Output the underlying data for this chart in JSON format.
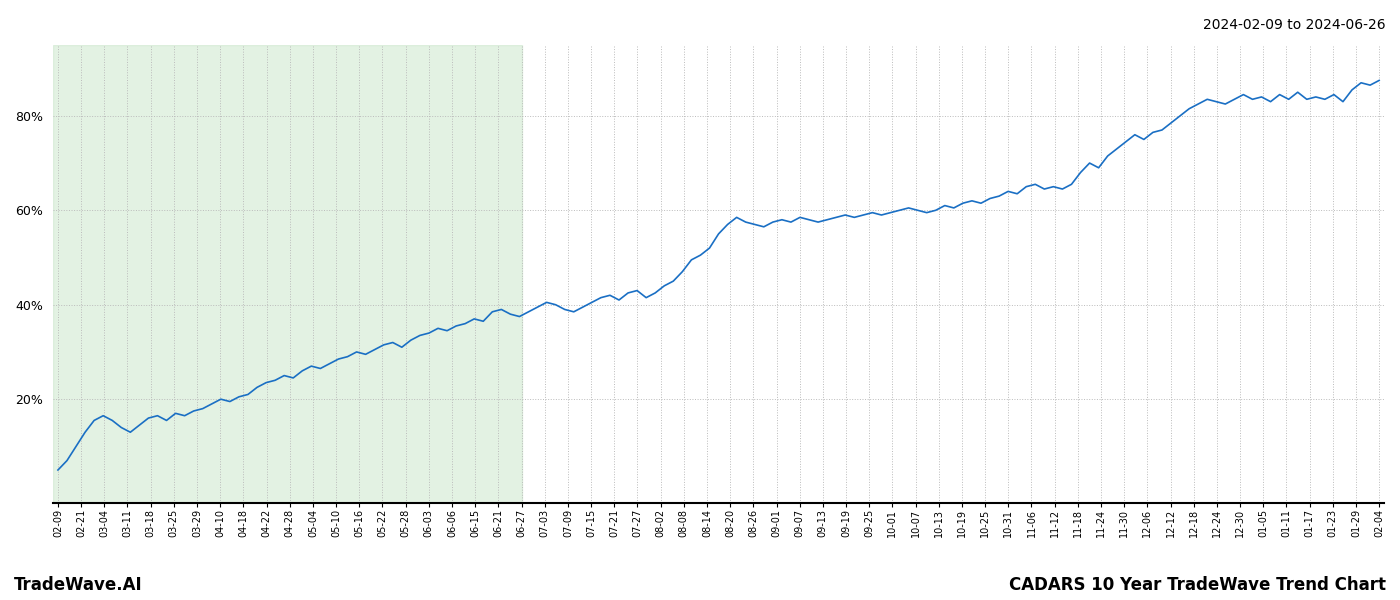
{
  "title_top_right": "2024-02-09 to 2024-06-26",
  "title_bottom_left": "TradeWave.AI",
  "title_bottom_right": "CADARS 10 Year TradeWave Trend Chart",
  "line_color": "#1a6fc4",
  "line_width": 1.2,
  "shade_color": "#c8e6c9",
  "shade_alpha": 0.5,
  "background_color": "#ffffff",
  "grid_color": "#bbbbbb",
  "grid_style": ":",
  "ylim": [
    -2,
    95
  ],
  "yticks": [
    20,
    40,
    60,
    80
  ],
  "x_tick_labels": [
    "02-09",
    "02-21",
    "03-04",
    "03-11",
    "03-18",
    "03-25",
    "03-29",
    "04-10",
    "04-18",
    "04-22",
    "04-28",
    "05-04",
    "05-10",
    "05-16",
    "05-22",
    "05-28",
    "06-03",
    "06-06",
    "06-15",
    "06-21",
    "06-27",
    "07-03",
    "07-09",
    "07-15",
    "07-21",
    "07-27",
    "08-02",
    "08-08",
    "08-14",
    "08-20",
    "08-26",
    "09-01",
    "09-07",
    "09-13",
    "09-19",
    "09-25",
    "10-01",
    "10-07",
    "10-13",
    "10-19",
    "10-25",
    "10-31",
    "11-06",
    "11-12",
    "11-18",
    "11-24",
    "11-30",
    "12-06",
    "12-12",
    "12-18",
    "12-24",
    "12-30",
    "01-05",
    "01-11",
    "01-17",
    "01-23",
    "01-29",
    "02-04"
  ],
  "shade_x_end_label": "06-27",
  "y_values": [
    5.0,
    7.0,
    10.0,
    13.0,
    15.5,
    16.5,
    15.5,
    14.0,
    13.0,
    14.5,
    16.0,
    16.5,
    15.5,
    17.0,
    16.5,
    17.5,
    18.0,
    19.0,
    20.0,
    19.5,
    20.5,
    21.0,
    22.5,
    23.5,
    24.0,
    25.0,
    24.5,
    26.0,
    27.0,
    26.5,
    27.5,
    28.5,
    29.0,
    30.0,
    29.5,
    30.5,
    31.5,
    32.0,
    31.0,
    32.5,
    33.5,
    34.0,
    35.0,
    34.5,
    35.5,
    36.0,
    37.0,
    36.5,
    38.5,
    39.0,
    38.0,
    37.5,
    38.5,
    39.5,
    40.5,
    40.0,
    39.0,
    38.5,
    39.5,
    40.5,
    41.5,
    42.0,
    41.0,
    42.5,
    43.0,
    41.5,
    42.5,
    44.0,
    45.0,
    47.0,
    49.5,
    50.5,
    52.0,
    55.0,
    57.0,
    58.5,
    57.5,
    57.0,
    56.5,
    57.5,
    58.0,
    57.5,
    58.5,
    58.0,
    57.5,
    58.0,
    58.5,
    59.0,
    58.5,
    59.0,
    59.5,
    59.0,
    59.5,
    60.0,
    60.5,
    60.0,
    59.5,
    60.0,
    61.0,
    60.5,
    61.5,
    62.0,
    61.5,
    62.5,
    63.0,
    64.0,
    63.5,
    65.0,
    65.5,
    64.5,
    65.0,
    64.5,
    65.5,
    68.0,
    70.0,
    69.0,
    71.5,
    73.0,
    74.5,
    76.0,
    75.0,
    76.5,
    77.0,
    78.5,
    80.0,
    81.5,
    82.5,
    83.5,
    83.0,
    82.5,
    83.5,
    84.5,
    83.5,
    84.0,
    83.0,
    84.5,
    83.5,
    85.0,
    83.5,
    84.0,
    83.5,
    84.5,
    83.0,
    85.5,
    87.0,
    86.5,
    87.5
  ]
}
